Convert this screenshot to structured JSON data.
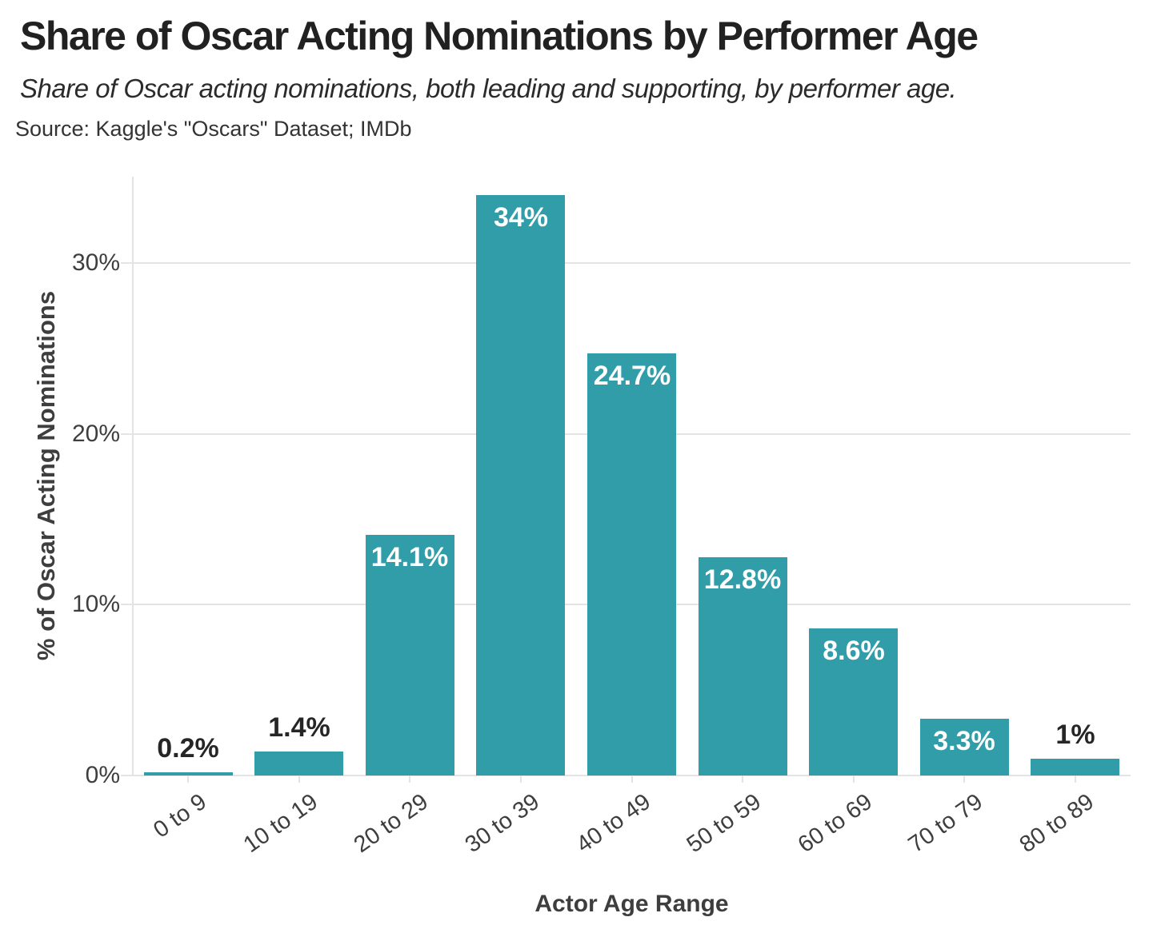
{
  "header": {
    "title": "Share of Oscar Acting Nominations by Performer Age",
    "subtitle": "Share of Oscar acting nominations, both leading and supporting, by performer age.",
    "source": "Source: Kaggle's \"Oscars\" Dataset; IMDb"
  },
  "chart_data": {
    "type": "bar",
    "title": "Share of Oscar Acting Nominations by Performer Age",
    "subtitle": "Share of Oscar acting nominations, both leading and supporting, by performer age.",
    "source": "Source: Kaggle's \"Oscars\" Dataset; IMDb",
    "categories": [
      "0 to 9",
      "10 to 19",
      "20 to 29",
      "30 to 39",
      "40 to 49",
      "50 to 59",
      "60 to 69",
      "70 to 79",
      "80 to 89"
    ],
    "values": [
      0.2,
      1.4,
      14.1,
      34,
      24.7,
      12.8,
      8.6,
      3.3,
      1
    ],
    "value_labels": [
      "0.2%",
      "1.4%",
      "14.1%",
      "34%",
      "24.7%",
      "12.8%",
      "8.6%",
      "3.3%",
      "1%"
    ],
    "label_inside": [
      false,
      false,
      true,
      true,
      true,
      true,
      true,
      true,
      false
    ],
    "xlabel": "Actor Age Range",
    "ylabel": "% of Oscar Acting Nominations",
    "y_ticks": [
      "0%",
      "10%",
      "20%",
      "30%"
    ],
    "ylim": [
      0,
      35.1
    ],
    "grid": "horizontal-only",
    "legend": "none",
    "colors": {
      "bar": "#309DA8",
      "label_inside": "#FFFFFF",
      "label_outside": "#262626",
      "gridline": "#E4E4E4",
      "axis_text": "#3E3E3E",
      "title_text": "#212121"
    }
  }
}
